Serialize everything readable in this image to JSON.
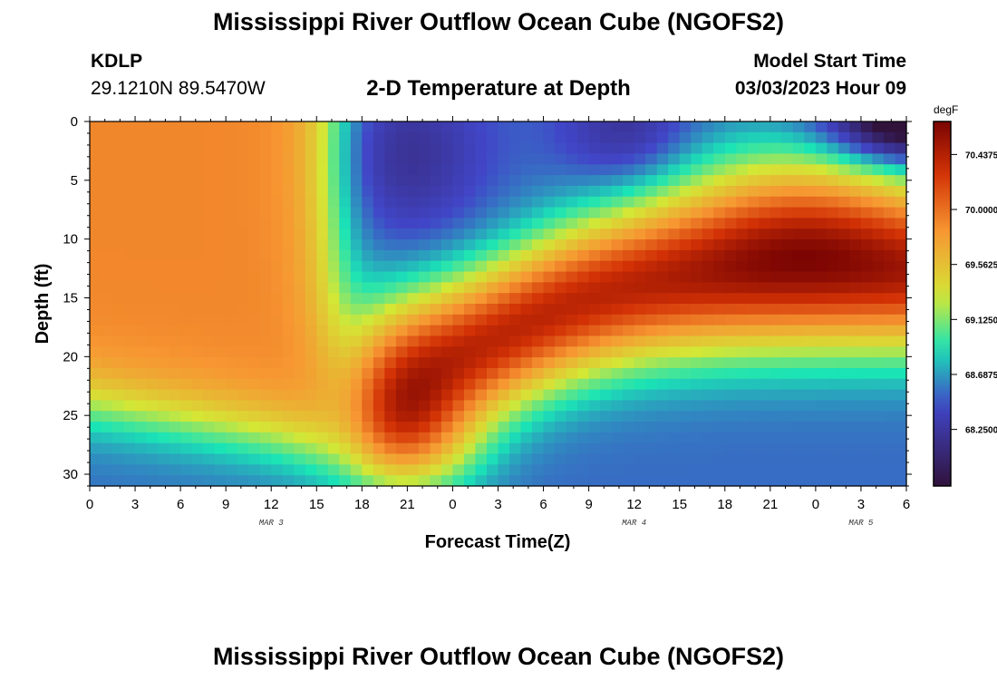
{
  "header": {
    "title": "Mississippi River Outflow Ocean Cube (NGOFS2)",
    "station_id": "KDLP",
    "station_coords": "29.1210N  89.5470W",
    "plot_subtitle": "2-D Temperature at Depth",
    "model_start_label": "Model Start Time",
    "model_start_value": "03/03/2023 Hour 09"
  },
  "footer": {
    "title": "Mississippi River Outflow Ocean Cube (NGOFS2)"
  },
  "chart_data": {
    "type": "heatmap",
    "title": "2-D Temperature at Depth",
    "xlabel": "Forecast Time(Z)",
    "ylabel": "Depth (ft)",
    "units": "degF",
    "x_range_hours": [
      0,
      54
    ],
    "y_range_ft": [
      0,
      31
    ],
    "x_tick_labels": [
      "0",
      "3",
      "6",
      "9",
      "12",
      "15",
      "18",
      "21",
      "0",
      "3",
      "6",
      "9",
      "12",
      "15",
      "18",
      "21",
      "0",
      "3",
      "6"
    ],
    "x_tick_hours": [
      0,
      3,
      6,
      9,
      12,
      15,
      18,
      21,
      24,
      27,
      30,
      33,
      36,
      39,
      42,
      45,
      48,
      51,
      54
    ],
    "y_tick_labels": [
      "0",
      "5",
      "10",
      "15",
      "20",
      "25",
      "30"
    ],
    "y_tick_values": [
      0,
      5,
      10,
      15,
      20,
      25,
      30
    ],
    "day_labels": [
      {
        "text": "MAR 3",
        "hour": 12
      },
      {
        "text": "MAR 4",
        "hour": 36
      },
      {
        "text": "MAR 5",
        "hour": 51
      }
    ],
    "colorbar": {
      "label": "degF",
      "min": 67.8,
      "max": 70.7,
      "tick_labels": [
        "70.4375",
        "70.0000",
        "69.5625",
        "69.1250",
        "68.6875",
        "68.2500"
      ],
      "tick_values": [
        70.4375,
        70.0,
        69.5625,
        69.125,
        68.6875,
        68.25
      ]
    },
    "colors": {
      "darkest": "#30123b",
      "blue": "#4146c8",
      "cyan": "#1ae4b6",
      "yellow": "#d4e735",
      "orange": "#f79632",
      "red": "#d23105",
      "darkred": "#7a0403"
    },
    "grid": false
  }
}
